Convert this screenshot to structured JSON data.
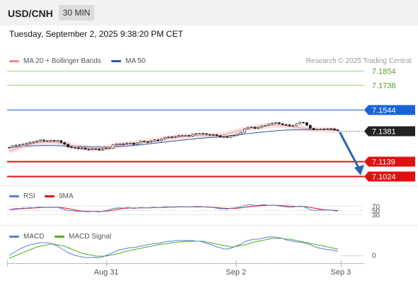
{
  "header": {
    "symbol": "USD/CNH",
    "timeframe": "30 MIN",
    "timestamp": "Tuesday, September 2, 2025 9:38:20 PM CET"
  },
  "legend": {
    "ma20_label": "MA 20 + Bollinger Bands",
    "ma50_label": "MA 50",
    "credit": "Research © 2025 Trading Central",
    "rsi_label": "RSI",
    "rsi_ma_label": "9MA",
    "macd_label": "MACD",
    "macd_signal_label": "MACD Signal"
  },
  "colors": {
    "ma20": "#f08a8a",
    "bollinger_fill": "#fadede",
    "ma50": "#2a5aa8",
    "resistance": "#a8d080",
    "pivot": "#1a63d6",
    "support": "#e01010",
    "last_price": "#222222",
    "arrow": "#2a64b0",
    "candle": "#222222",
    "rsi": "#5b7fd6",
    "rsi_ma": "#e01010",
    "macd": "#5b7fd6",
    "macd_signal": "#4caf1e"
  },
  "chart_data": [
    {
      "type": "candlestick",
      "panel": "price",
      "x_ticks": [
        "Aug 31",
        "Sep 2",
        "Sep 3"
      ],
      "levels": [
        {
          "name": "resistance-2",
          "value": 7.1854,
          "label": "7.1854",
          "kind": "resistance"
        },
        {
          "name": "resistance-1",
          "value": 7.1738,
          "label": "7.1738",
          "kind": "resistance"
        },
        {
          "name": "pivot",
          "value": 7.1544,
          "label": "7.1544",
          "kind": "pivot"
        },
        {
          "name": "last-price",
          "value": 7.1381,
          "label": "7.1381",
          "kind": "last"
        },
        {
          "name": "support-1",
          "value": 7.1139,
          "label": "7.1139",
          "kind": "support"
        },
        {
          "name": "support-2",
          "value": 7.1024,
          "label": "7.1024",
          "kind": "support"
        }
      ],
      "close": [
        7.125,
        7.1262,
        7.1268,
        7.1271,
        7.1274,
        7.128,
        7.1289,
        7.1291,
        7.13,
        7.1307,
        7.1299,
        7.1301,
        7.1303,
        7.1301,
        7.1302,
        7.1288,
        7.1274,
        7.1252,
        7.1248,
        7.1246,
        7.1239,
        7.1243,
        7.1235,
        7.1233,
        7.1238,
        7.1236,
        7.1228,
        7.1237,
        7.1243,
        7.1244,
        7.1269,
        7.1276,
        7.1277,
        7.1275,
        7.1283,
        7.1283,
        7.1272,
        7.1284,
        7.1298,
        7.1293,
        7.129,
        7.1299,
        7.1308,
        7.1301,
        7.1315,
        7.1327,
        7.1332,
        7.1328,
        7.1335,
        7.1342,
        7.1342,
        7.1343,
        7.1338,
        7.1351,
        7.1357,
        7.1358,
        7.1357,
        7.1351,
        7.135,
        7.1349,
        7.1341,
        7.133,
        7.1332,
        7.1327,
        7.1339,
        7.1342,
        7.1353,
        7.1367,
        7.1395,
        7.1405,
        7.1408,
        7.1398,
        7.1406,
        7.1418,
        7.1422,
        7.1433,
        7.1439,
        7.1444,
        7.1435,
        7.1428,
        7.1426,
        7.1418,
        7.1421,
        7.1435,
        7.1446,
        7.1444,
        7.1423,
        7.1399,
        7.1387,
        7.1392,
        7.1394,
        7.1392,
        7.1396,
        7.1395,
        7.1385,
        7.1381
      ],
      "ma20": [
        7.122,
        7.123,
        7.124,
        7.125,
        7.1258,
        7.1266,
        7.1273,
        7.128,
        7.1285,
        7.1288,
        7.129,
        7.1291,
        7.1292,
        7.129,
        7.1287,
        7.1282,
        7.1276,
        7.127,
        7.1264,
        7.1258,
        7.1253,
        7.1249,
        7.1245,
        7.1242,
        7.124,
        7.1239,
        7.124,
        7.1242,
        7.1246,
        7.1251,
        7.1256,
        7.1261,
        7.1266,
        7.127,
        7.1274,
        7.1278,
        7.1281,
        7.1285,
        7.1289,
        7.1293,
        7.1297,
        7.1301,
        7.1305,
        7.1309,
        7.1313,
        7.1317,
        7.1321,
        7.1324,
        7.1327,
        7.1331,
        7.1334,
        7.1337,
        7.1339,
        7.1341,
        7.1342,
        7.1342,
        7.1341,
        7.134,
        7.134,
        7.1341,
        7.1343,
        7.1345,
        7.1349,
        7.1355,
        7.1362,
        7.1369,
        7.1376,
        7.1383,
        7.139,
        7.1396,
        7.1401,
        7.1406,
        7.1411,
        7.1415,
        7.1418,
        7.1421,
        7.1423,
        7.1424,
        7.1424,
        7.1422,
        7.1419,
        7.1415,
        7.1411,
        7.1407,
        7.1403,
        7.14,
        7.1397,
        7.1394,
        7.1391,
        7.1389,
        7.1388,
        7.1387,
        7.1386,
        7.1385,
        7.1384,
        7.1384
      ],
      "ma50": [
        7.125,
        7.1252,
        7.1254,
        7.1256,
        7.1258,
        7.126,
        7.1261,
        7.1262,
        7.1263,
        7.1264,
        7.1264,
        7.1264,
        7.1264,
        7.1264,
        7.1263,
        7.1262,
        7.1261,
        7.126,
        7.1259,
        7.1258,
        7.1257,
        7.1256,
        7.1255,
        7.1254,
        7.1253,
        7.1252,
        7.1252,
        7.1252,
        7.1252,
        7.1253,
        7.1254,
        7.1255,
        7.1257,
        7.1259,
        7.1261,
        7.1263,
        7.1265,
        7.1268,
        7.127,
        7.1273,
        7.1276,
        7.1279,
        7.1282,
        7.1285,
        7.1288,
        7.1291,
        7.1294,
        7.1297,
        7.13,
        7.1303,
        7.1306,
        7.1309,
        7.1312,
        7.1314,
        7.1317,
        7.132,
        7.1322,
        7.1325,
        7.1327,
        7.1329,
        7.1331,
        7.1333,
        7.1336,
        7.1339,
        7.1342,
        7.1345,
        7.1348,
        7.1351,
        7.1354,
        7.1357,
        7.136,
        7.1363,
        7.1366,
        7.1369,
        7.1372,
        7.1375,
        7.1377,
        7.1379,
        7.1381,
        7.1383,
        7.1385,
        7.1386,
        7.1387,
        7.1388,
        7.1389,
        7.1389,
        7.1389,
        7.1389,
        7.1389,
        7.1389,
        7.1389,
        7.1389,
        7.1389,
        7.1389,
        7.1389,
        7.1389
      ],
      "projection": {
        "from": 7.1381,
        "to": 7.1024
      }
    },
    {
      "type": "line",
      "panel": "rsi",
      "y_ticks": [
        30,
        50,
        70
      ],
      "series": [
        {
          "name": "RSI",
          "values": [
            52,
            55,
            58,
            57,
            60,
            59,
            62,
            61,
            63,
            64,
            62,
            63,
            64,
            62,
            63,
            58,
            52,
            48,
            47,
            46,
            44,
            45,
            43,
            42,
            44,
            43,
            41,
            45,
            48,
            52,
            58,
            60,
            61,
            59,
            62,
            61,
            57,
            60,
            63,
            61,
            60,
            62,
            64,
            61,
            63,
            65,
            66,
            64,
            65,
            66,
            66,
            66,
            64,
            66,
            67,
            67,
            66,
            64,
            63,
            62,
            59,
            56,
            57,
            55,
            59,
            60,
            63,
            66,
            72,
            74,
            75,
            71,
            73,
            75,
            75,
            73,
            73,
            73,
            70,
            67,
            66,
            63,
            64,
            67,
            69,
            67,
            60,
            52,
            49,
            50,
            51,
            50,
            51,
            50,
            47,
            45
          ]
        },
        {
          "name": "9MA",
          "values": [
            52,
            53,
            55,
            56,
            57,
            58,
            59,
            60,
            61,
            62,
            62,
            63,
            63,
            63,
            63,
            62,
            60,
            57,
            54,
            51,
            48,
            46,
            45,
            44,
            44,
            44,
            43,
            44,
            45,
            47,
            50,
            53,
            56,
            58,
            59,
            60,
            60,
            60,
            61,
            61,
            61,
            61,
            62,
            62,
            62,
            63,
            64,
            64,
            64,
            65,
            65,
            65,
            65,
            65,
            65,
            65,
            65,
            65,
            64,
            63,
            62,
            60,
            59,
            58,
            58,
            58,
            59,
            61,
            63,
            65,
            67,
            69,
            70,
            71,
            72,
            73,
            73,
            73,
            72,
            71,
            70,
            69,
            68,
            67,
            67,
            67,
            66,
            63,
            60,
            57,
            54,
            52,
            51,
            50,
            49,
            48
          ]
        }
      ]
    },
    {
      "type": "line",
      "panel": "macd",
      "y_ticks": [
        0
      ],
      "series": [
        {
          "name": "MACD",
          "values": [
            0.0,
            0.0003,
            0.0006,
            0.0009,
            0.0011,
            0.0013,
            0.0015,
            0.0016,
            0.0017,
            0.0018,
            0.0018,
            0.0018,
            0.0017,
            0.0015,
            0.0013,
            0.001,
            0.0007,
            0.0004,
            0.0002,
            0.0,
            -0.0001,
            -0.0002,
            -0.0003,
            -0.0003,
            -0.0003,
            -0.0003,
            -0.0003,
            -0.0002,
            0.0,
            0.0002,
            0.0004,
            0.0006,
            0.0008,
            0.0009,
            0.001,
            0.0011,
            0.0011,
            0.0012,
            0.0013,
            0.0014,
            0.0015,
            0.0016,
            0.0017,
            0.0017,
            0.0018,
            0.0019,
            0.002,
            0.002,
            0.0021,
            0.0021,
            0.0021,
            0.0021,
            0.0021,
            0.0021,
            0.002,
            0.002,
            0.0019,
            0.0017,
            0.0016,
            0.0014,
            0.0012,
            0.0011,
            0.0009,
            0.0009,
            0.001,
            0.0012,
            0.0014,
            0.0016,
            0.0019,
            0.0021,
            0.0022,
            0.0023,
            0.0023,
            0.0024,
            0.0025,
            0.0026,
            0.0026,
            0.0026,
            0.0025,
            0.0024,
            0.0022,
            0.0021,
            0.002,
            0.0019,
            0.0019,
            0.0018,
            0.0017,
            0.0015,
            0.0013,
            0.0011,
            0.001,
            0.0009,
            0.0008,
            0.0008,
            0.0007,
            0.0006
          ]
        },
        {
          "name": "MACD Signal",
          "values": [
            -0.0004,
            -0.0002,
            0.0,
            0.0002,
            0.0004,
            0.0006,
            0.0008,
            0.001,
            0.0012,
            0.0013,
            0.0014,
            0.0015,
            0.0016,
            0.0016,
            0.0015,
            0.0014,
            0.0013,
            0.0011,
            0.0009,
            0.0007,
            0.0005,
            0.0003,
            0.0002,
            0.0001,
            0.0,
            -0.0001,
            -0.0001,
            -0.0001,
            -0.0001,
            0.0,
            0.0001,
            0.0002,
            0.0003,
            0.0005,
            0.0006,
            0.0007,
            0.0008,
            0.0009,
            0.001,
            0.0011,
            0.0012,
            0.0013,
            0.0014,
            0.0015,
            0.0016,
            0.0016,
            0.0017,
            0.0018,
            0.0018,
            0.0019,
            0.0019,
            0.002,
            0.002,
            0.002,
            0.002,
            0.002,
            0.002,
            0.0019,
            0.0018,
            0.0017,
            0.0016,
            0.0015,
            0.0014,
            0.0013,
            0.0012,
            0.0012,
            0.0013,
            0.0014,
            0.0015,
            0.0016,
            0.0018,
            0.0019,
            0.002,
            0.0021,
            0.0022,
            0.0023,
            0.0024,
            0.0024,
            0.0024,
            0.0024,
            0.0023,
            0.0023,
            0.0022,
            0.0021,
            0.002,
            0.0019,
            0.0018,
            0.0017,
            0.0016,
            0.0015,
            0.0014,
            0.0013,
            0.0012,
            0.0011,
            0.001,
            0.0009
          ]
        }
      ]
    }
  ]
}
